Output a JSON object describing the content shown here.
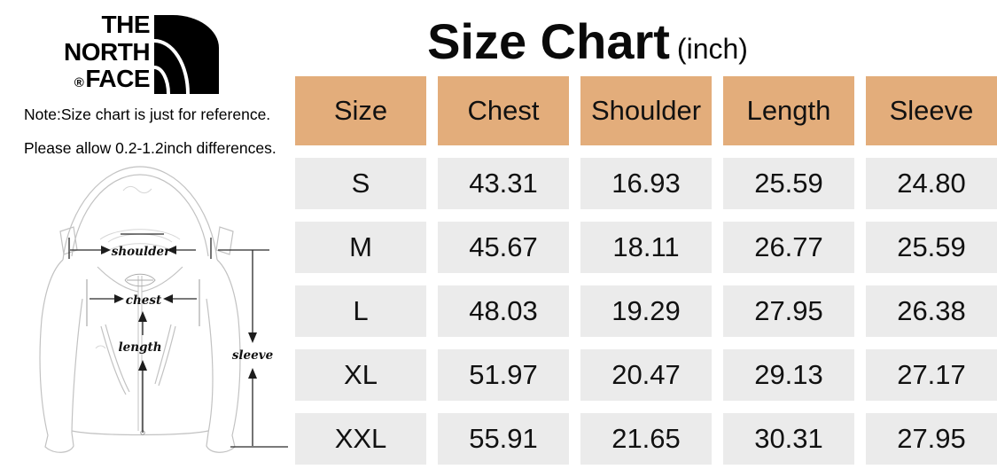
{
  "brand": {
    "name": "THE NORTH FACE",
    "line1": "THE",
    "line2": "NORTH",
    "line3": "FACE",
    "registered": "®"
  },
  "notes": {
    "line1": "Note:Size chart is just for reference.",
    "line2": "Please allow 0.2-1.2inch differences."
  },
  "title": {
    "main": "Size Chart",
    "unit": "(inch)"
  },
  "diagram": {
    "labels": {
      "shoulder": "shoulder",
      "chest": "chest",
      "length": "length",
      "sleeve": "sleeve"
    }
  },
  "colors": {
    "header_bg": "#E3AD7B",
    "row_bg": "#EBEBEB",
    "text": "#111111",
    "logo": "#000000"
  },
  "chart_data": {
    "type": "table",
    "title": "Size Chart (inch)",
    "columns": [
      "Size",
      "Chest",
      "Shoulder",
      "Length",
      "Sleeve"
    ],
    "rows": [
      [
        "S",
        "43.31",
        "16.93",
        "25.59",
        "24.80"
      ],
      [
        "M",
        "45.67",
        "18.11",
        "26.77",
        "25.59"
      ],
      [
        "L",
        "48.03",
        "19.29",
        "27.95",
        "26.38"
      ],
      [
        "XL",
        "51.97",
        "20.47",
        "29.13",
        "27.17"
      ],
      [
        "XXL",
        "55.91",
        "21.65",
        "30.31",
        "27.95"
      ]
    ]
  }
}
